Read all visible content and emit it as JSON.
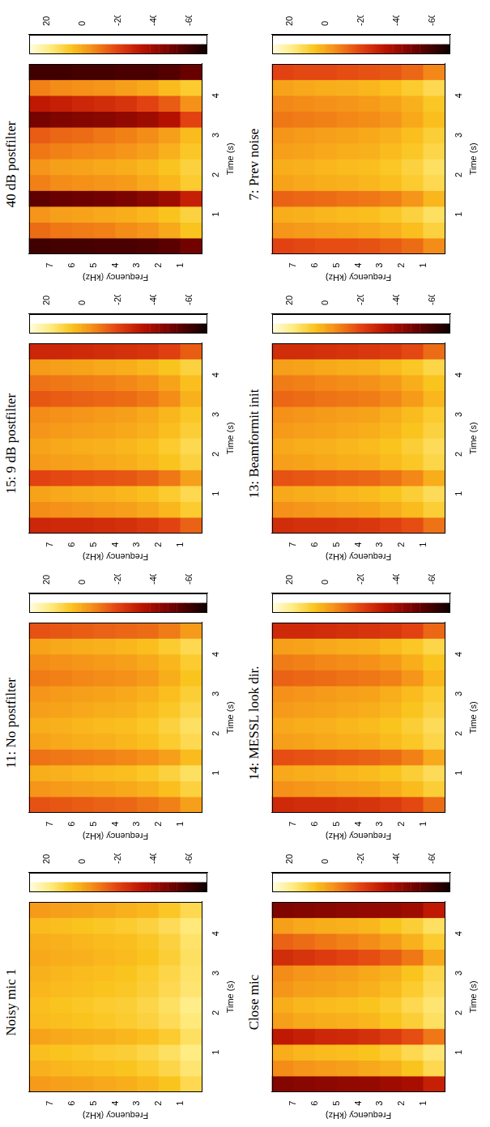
{
  "chart_data": [
    {
      "type": "heatmap",
      "title": "Noisy mic 1",
      "xlabel": "Time (s)",
      "ylabel": "Frequency (kHz)",
      "xlim": [
        0,
        4.8
      ],
      "xticks": [
        1,
        2,
        3,
        4
      ],
      "ylim": [
        0,
        8
      ],
      "yticks": [
        1,
        2,
        3,
        4,
        5,
        6,
        7
      ],
      "grid": false,
      "color": "hot",
      "x_bins": [
        0,
        0.4,
        0.8,
        1.2,
        1.6,
        2,
        2.4,
        2.8,
        3.2,
        3.6,
        4,
        4.4,
        4.8
      ],
      "y_bins": [
        0,
        1,
        2,
        3,
        4,
        5,
        6,
        7,
        8
      ],
      "cells": [
        [
          12,
          16,
          18,
          14,
          17,
          19,
          16,
          15,
          14,
          15,
          17,
          12
        ],
        [
          6,
          11,
          14,
          8,
          13,
          14,
          12,
          11,
          9,
          10,
          13,
          7
        ],
        [
          3,
          8,
          11,
          5,
          10,
          11,
          9,
          8,
          6,
          7,
          10,
          3
        ],
        [
          1,
          6,
          9,
          3,
          8,
          9,
          7,
          6,
          4,
          5,
          8,
          2
        ],
        [
          0,
          5,
          8,
          2,
          7,
          8,
          6,
          5,
          3,
          4,
          7,
          0
        ],
        [
          -1,
          4,
          7,
          1,
          6,
          7,
          5,
          4,
          2,
          3,
          6,
          -1
        ],
        [
          -2,
          3,
          6,
          0,
          5,
          6,
          4,
          3,
          1,
          2,
          5,
          -2
        ],
        [
          -3,
          2,
          5,
          -1,
          4,
          5,
          3,
          2,
          0,
          1,
          4,
          -3
        ]
      ],
      "colorbar": {
        "range": [
          -70,
          30
        ],
        "ticks": [
          20,
          0,
          -20,
          -40,
          -60
        ]
      }
    },
    {
      "type": "heatmap",
      "title": "11: No postfilter",
      "xlabel": "Time (s)",
      "ylabel": "Frequency (kHz)",
      "xlim": [
        0,
        4.8
      ],
      "xticks": [
        1,
        2,
        3,
        4
      ],
      "ylim": [
        0,
        8
      ],
      "yticks": [
        1,
        2,
        3,
        4,
        5,
        6,
        7
      ],
      "grid": false,
      "color": "hot",
      "x_bins": [
        0,
        0.4,
        0.8,
        1.2,
        1.6,
        2,
        2.4,
        2.8,
        3.2,
        3.6,
        4,
        4.4,
        4.8
      ],
      "y_bins": [
        0,
        1,
        2,
        3,
        4,
        5,
        6,
        7,
        8
      ],
      "cells": [
        [
          -2,
          10,
          14,
          4,
          12,
          14,
          11,
          9,
          6,
          8,
          12,
          -3
        ],
        [
          -8,
          5,
          10,
          -2,
          8,
          10,
          7,
          5,
          1,
          3,
          8,
          -9
        ],
        [
          -11,
          2,
          7,
          -5,
          5,
          7,
          4,
          2,
          -3,
          0,
          5,
          -12
        ],
        [
          -13,
          0,
          5,
          -7,
          3,
          5,
          2,
          0,
          -5,
          -2,
          3,
          -13
        ],
        [
          -14,
          -1,
          4,
          -8,
          2,
          4,
          1,
          -1,
          -6,
          -3,
          2,
          -14
        ],
        [
          -15,
          -2,
          3,
          -9,
          1,
          3,
          0,
          -2,
          -7,
          -4,
          1,
          -15
        ],
        [
          -16,
          -3,
          2,
          -10,
          0,
          2,
          -1,
          -3,
          -8,
          -5,
          0,
          -16
        ],
        [
          -17,
          -4,
          1,
          -11,
          -1,
          1,
          -2,
          -4,
          -9,
          -6,
          -1,
          -17
        ]
      ],
      "colorbar": {
        "range": [
          -70,
          30
        ],
        "ticks": [
          20,
          0,
          -20,
          -40,
          -60
        ]
      }
    },
    {
      "type": "heatmap",
      "title": "15: 9 dB postfilter",
      "xlabel": "Time (s)",
      "ylabel": "Frequency (kHz)",
      "xlim": [
        0,
        4.8
      ],
      "xticks": [
        1,
        2,
        3,
        4
      ],
      "ylim": [
        0,
        8
      ],
      "yticks": [
        1,
        2,
        3,
        4,
        5,
        6,
        7
      ],
      "grid": false,
      "color": "hot",
      "x_bins": [
        0,
        0.4,
        0.8,
        1.2,
        1.6,
        2,
        2.4,
        2.8,
        3.2,
        3.6,
        4,
        4.4,
        4.8
      ],
      "y_bins": [
        0,
        1,
        2,
        3,
        4,
        5,
        6,
        7,
        8
      ],
      "cells": [
        [
          -14,
          8,
          12,
          -2,
          10,
          12,
          9,
          7,
          2,
          5,
          10,
          -15
        ],
        [
          -20,
          3,
          8,
          -10,
          6,
          8,
          5,
          3,
          -6,
          -1,
          6,
          -21
        ],
        [
          -23,
          0,
          5,
          -14,
          3,
          5,
          2,
          0,
          -10,
          -5,
          3,
          -24
        ],
        [
          -25,
          -2,
          3,
          -16,
          1,
          3,
          0,
          -2,
          -12,
          -7,
          1,
          -25
        ],
        [
          -26,
          -3,
          2,
          -17,
          0,
          2,
          -1,
          -3,
          -13,
          -8,
          0,
          -26
        ],
        [
          -27,
          -4,
          1,
          -18,
          -1,
          1,
          -2,
          -4,
          -14,
          -9,
          -1,
          -27
        ],
        [
          -27,
          -5,
          0,
          -19,
          -2,
          0,
          -3,
          -5,
          -15,
          -10,
          -2,
          -28
        ],
        [
          -28,
          -6,
          -1,
          -20,
          -3,
          -1,
          -4,
          -6,
          -16,
          -11,
          -3,
          -28
        ]
      ],
      "colorbar": {
        "range": [
          -70,
          30
        ],
        "ticks": [
          20,
          0,
          -20,
          -40,
          -60
        ]
      }
    },
    {
      "type": "heatmap",
      "title": "40 dB postfilter",
      "xlabel": "Time (s)",
      "ylabel": "Frequency (kHz)",
      "xlim": [
        0,
        4.8
      ],
      "xticks": [
        1,
        2,
        3,
        4
      ],
      "ylim": [
        0,
        8
      ],
      "yticks": [
        1,
        2,
        3,
        4,
        5,
        6,
        7
      ],
      "grid": false,
      "color": "hot",
      "x_bins": [
        0,
        0.4,
        0.8,
        1.2,
        1.6,
        2,
        2.4,
        2.8,
        3.2,
        3.6,
        4,
        4.4,
        4.8
      ],
      "y_bins": [
        0,
        1,
        2,
        3,
        4,
        5,
        6,
        7,
        8
      ],
      "cells": [
        [
          -50,
          6,
          10,
          -30,
          8,
          10,
          7,
          4,
          -20,
          -5,
          8,
          -52
        ],
        [
          -55,
          0,
          6,
          -40,
          3,
          6,
          2,
          -2,
          -35,
          -15,
          4,
          -56
        ],
        [
          -57,
          -4,
          3,
          -45,
          0,
          3,
          -2,
          -6,
          -40,
          -20,
          0,
          -58
        ],
        [
          -58,
          -6,
          1,
          -48,
          -3,
          1,
          -4,
          -8,
          -43,
          -24,
          -2,
          -58
        ],
        [
          -58,
          -8,
          0,
          -50,
          -4,
          0,
          -6,
          -10,
          -45,
          -26,
          -4,
          -59
        ],
        [
          -59,
          -9,
          -1,
          -51,
          -5,
          -1,
          -7,
          -12,
          -46,
          -28,
          -5,
          -59
        ],
        [
          -59,
          -10,
          -2,
          -52,
          -6,
          -2,
          -8,
          -13,
          -47,
          -30,
          -6,
          -60
        ],
        [
          -60,
          -12,
          -4,
          -54,
          -8,
          -4,
          -10,
          -15,
          -49,
          -32,
          -8,
          -60
        ]
      ],
      "colorbar": {
        "range": [
          -70,
          30
        ],
        "ticks": [
          20,
          0,
          -20,
          -40,
          -60
        ]
      }
    },
    {
      "type": "heatmap",
      "title": "Close mic",
      "xlabel": "Time (s)",
      "ylabel": "Frequency (kHz)",
      "xlim": [
        0,
        4.8
      ],
      "xticks": [
        1,
        2,
        3,
        4
      ],
      "ylim": [
        0,
        8
      ],
      "yticks": [
        1,
        2,
        3,
        4,
        5,
        6,
        7
      ],
      "grid": false,
      "color": "hot",
      "x_bins": [
        0,
        0.4,
        0.8,
        1.2,
        1.6,
        2,
        2.4,
        2.8,
        3.2,
        3.6,
        4,
        4.4,
        4.8
      ],
      "y_bins": [
        0,
        1,
        2,
        3,
        4,
        5,
        6,
        7,
        8
      ],
      "cells": [
        [
          -30,
          12,
          16,
          -10,
          14,
          16,
          13,
          11,
          0,
          8,
          14,
          -32
        ],
        [
          -38,
          6,
          12,
          -18,
          9,
          12,
          8,
          6,
          -10,
          2,
          9,
          -40
        ],
        [
          -40,
          2,
          8,
          -22,
          6,
          8,
          4,
          2,
          -15,
          -3,
          6,
          -42
        ],
        [
          -42,
          0,
          6,
          -25,
          3,
          6,
          2,
          0,
          -18,
          -6,
          3,
          -43
        ],
        [
          -43,
          -2,
          5,
          -27,
          2,
          5,
          0,
          -2,
          -20,
          -8,
          2,
          -44
        ],
        [
          -44,
          -3,
          4,
          -28,
          1,
          4,
          -1,
          -3,
          -22,
          -10,
          1,
          -45
        ],
        [
          -45,
          -4,
          3,
          -30,
          0,
          3,
          -2,
          -4,
          -24,
          -12,
          0,
          -46
        ],
        [
          -46,
          -6,
          1,
          -32,
          -2,
          1,
          -4,
          -6,
          -26,
          -14,
          -2,
          -47
        ]
      ],
      "colorbar": {
        "range": [
          -70,
          30
        ],
        "ticks": [
          20,
          0,
          -20,
          -40,
          -60
        ]
      }
    },
    {
      "type": "heatmap",
      "title": "14: MESSL look dir.",
      "xlabel": "Time (s)",
      "ylabel": "Frequency (kHz)",
      "xlim": [
        0,
        4.8
      ],
      "xticks": [
        1,
        2,
        3,
        4
      ],
      "ylim": [
        0,
        8
      ],
      "yticks": [
        1,
        2,
        3,
        4,
        5,
        6,
        7
      ],
      "grid": false,
      "color": "hot",
      "x_bins": [
        0,
        0.4,
        0.8,
        1.2,
        1.6,
        2,
        2.4,
        2.8,
        3.2,
        3.6,
        4,
        4.4,
        4.8
      ],
      "y_bins": [
        0,
        1,
        2,
        3,
        4,
        5,
        6,
        7,
        8
      ],
      "cells": [
        [
          -12,
          9,
          13,
          0,
          11,
          13,
          10,
          8,
          3,
          6,
          11,
          -13
        ],
        [
          -19,
          4,
          9,
          -8,
          7,
          9,
          6,
          4,
          -4,
          1,
          7,
          -20
        ],
        [
          -22,
          1,
          6,
          -12,
          4,
          6,
          3,
          1,
          -8,
          -3,
          4,
          -23
        ],
        [
          -24,
          -1,
          4,
          -14,
          2,
          4,
          1,
          -1,
          -10,
          -5,
          2,
          -24
        ],
        [
          -25,
          -2,
          3,
          -15,
          1,
          3,
          0,
          -2,
          -11,
          -6,
          1,
          -25
        ],
        [
          -26,
          -3,
          2,
          -16,
          0,
          2,
          -1,
          -3,
          -12,
          -7,
          0,
          -26
        ],
        [
          -26,
          -4,
          1,
          -17,
          -1,
          1,
          -2,
          -4,
          -13,
          -8,
          -1,
          -27
        ],
        [
          -27,
          -5,
          0,
          -18,
          -2,
          0,
          -3,
          -5,
          -14,
          -9,
          -2,
          -27
        ]
      ],
      "colorbar": {
        "range": [
          -70,
          30
        ],
        "ticks": [
          20,
          0,
          -20,
          -40,
          -60
        ]
      }
    },
    {
      "type": "heatmap",
      "title": "13: Beamformit init",
      "xlabel": "Time (s)",
      "ylabel": "Frequency (kHz)",
      "xlim": [
        0,
        4.8
      ],
      "xticks": [
        1,
        2,
        3,
        4
      ],
      "ylim": [
        0,
        8
      ],
      "yticks": [
        1,
        2,
        3,
        4,
        5,
        6,
        7
      ],
      "grid": false,
      "color": "hot",
      "x_bins": [
        0,
        0.4,
        0.8,
        1.2,
        1.6,
        2,
        2.4,
        2.8,
        3.2,
        3.6,
        4,
        4.4,
        4.8
      ],
      "y_bins": [
        0,
        1,
        2,
        3,
        4,
        5,
        6,
        7,
        8
      ],
      "cells": [
        [
          -11,
          9,
          13,
          1,
          11,
          13,
          10,
          8,
          3,
          6,
          11,
          -12
        ],
        [
          -18,
          4,
          9,
          -7,
          7,
          9,
          6,
          4,
          -3,
          1,
          7,
          -19
        ],
        [
          -21,
          1,
          6,
          -11,
          4,
          6,
          3,
          1,
          -7,
          -3,
          4,
          -22
        ],
        [
          -23,
          -1,
          4,
          -13,
          2,
          4,
          1,
          -1,
          -9,
          -5,
          2,
          -23
        ],
        [
          -24,
          -2,
          3,
          -14,
          1,
          3,
          0,
          -2,
          -10,
          -6,
          1,
          -24
        ],
        [
          -25,
          -3,
          2,
          -15,
          0,
          2,
          -1,
          -3,
          -11,
          -7,
          0,
          -25
        ],
        [
          -25,
          -4,
          1,
          -16,
          -1,
          1,
          -2,
          -4,
          -12,
          -8,
          -1,
          -26
        ],
        [
          -26,
          -5,
          0,
          -17,
          -2,
          0,
          -3,
          -5,
          -13,
          -9,
          -2,
          -26
        ]
      ],
      "colorbar": {
        "range": [
          -70,
          30
        ],
        "ticks": [
          20,
          0,
          -20,
          -40,
          -60
        ]
      }
    },
    {
      "type": "heatmap",
      "title": "7: Prev noise",
      "xlabel": "Time (s)",
      "ylabel": "Frequency (kHz)",
      "xlim": [
        0,
        4.8
      ],
      "xticks": [
        1,
        2,
        3,
        4
      ],
      "ylim": [
        0,
        8
      ],
      "yticks": [
        1,
        2,
        3,
        4,
        5,
        6,
        7
      ],
      "grid": false,
      "color": "hot",
      "x_bins": [
        0,
        0.4,
        0.8,
        1.2,
        1.6,
        2,
        2.4,
        2.8,
        3.2,
        3.6,
        4,
        4.4,
        4.8
      ],
      "y_bins": [
        0,
        1,
        2,
        3,
        4,
        5,
        6,
        7,
        8
      ],
      "cells": [
        [
          -6,
          10,
          14,
          3,
          12,
          14,
          11,
          9,
          5,
          7,
          12,
          -7
        ],
        [
          -12,
          5,
          10,
          -4,
          8,
          10,
          7,
          5,
          0,
          2,
          8,
          -13
        ],
        [
          -15,
          2,
          7,
          -8,
          5,
          7,
          4,
          2,
          -4,
          -1,
          5,
          -16
        ],
        [
          -17,
          0,
          5,
          -10,
          3,
          5,
          2,
          0,
          -6,
          -3,
          3,
          -17
        ],
        [
          -18,
          -1,
          4,
          -11,
          2,
          4,
          1,
          -1,
          -7,
          -4,
          2,
          -18
        ],
        [
          -18,
          -2,
          3,
          -12,
          1,
          3,
          0,
          -2,
          -8,
          -5,
          1,
          -19
        ],
        [
          -19,
          -3,
          2,
          -13,
          0,
          2,
          -1,
          -3,
          -9,
          -6,
          0,
          -19
        ],
        [
          -20,
          -4,
          1,
          -14,
          -1,
          1,
          -2,
          -4,
          -10,
          -7,
          -1,
          -20
        ]
      ],
      "colorbar": {
        "range": [
          -70,
          30
        ],
        "ticks": [
          20,
          0,
          -20,
          -40,
          -60
        ]
      }
    }
  ]
}
